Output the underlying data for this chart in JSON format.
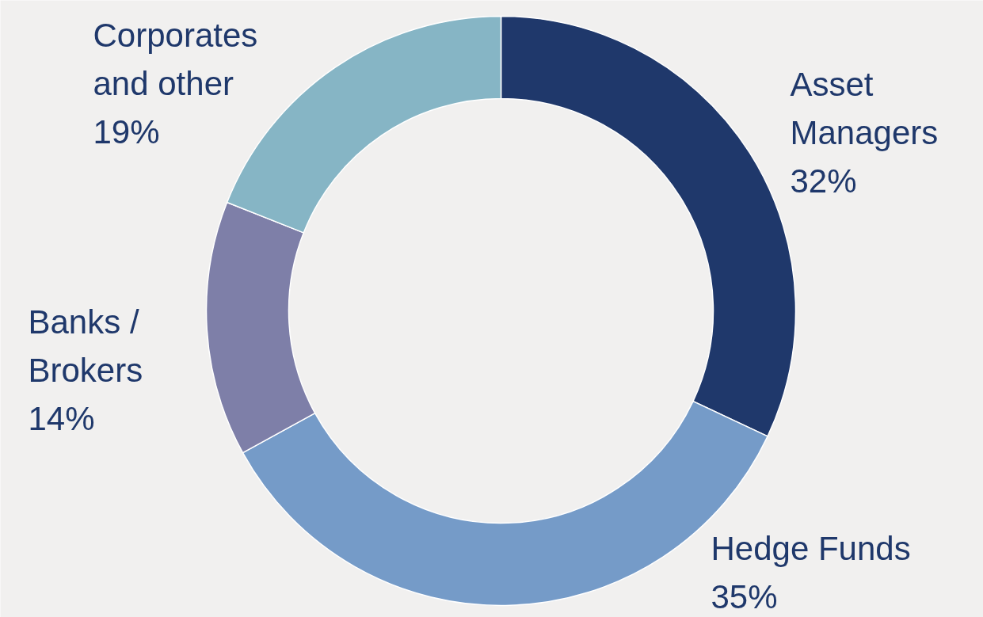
{
  "chart_data": {
    "type": "donut",
    "categories": [
      "Asset Managers",
      "Hedge Funds",
      "Banks / Brokers",
      "Corporates and other"
    ],
    "values": [
      32,
      35,
      14,
      19
    ],
    "value_labels": [
      "32%",
      "35%",
      "14%",
      "19%"
    ],
    "colors": [
      "#1f386b",
      "#759bc8",
      "#7e7fa8",
      "#86b5c5"
    ]
  }
}
